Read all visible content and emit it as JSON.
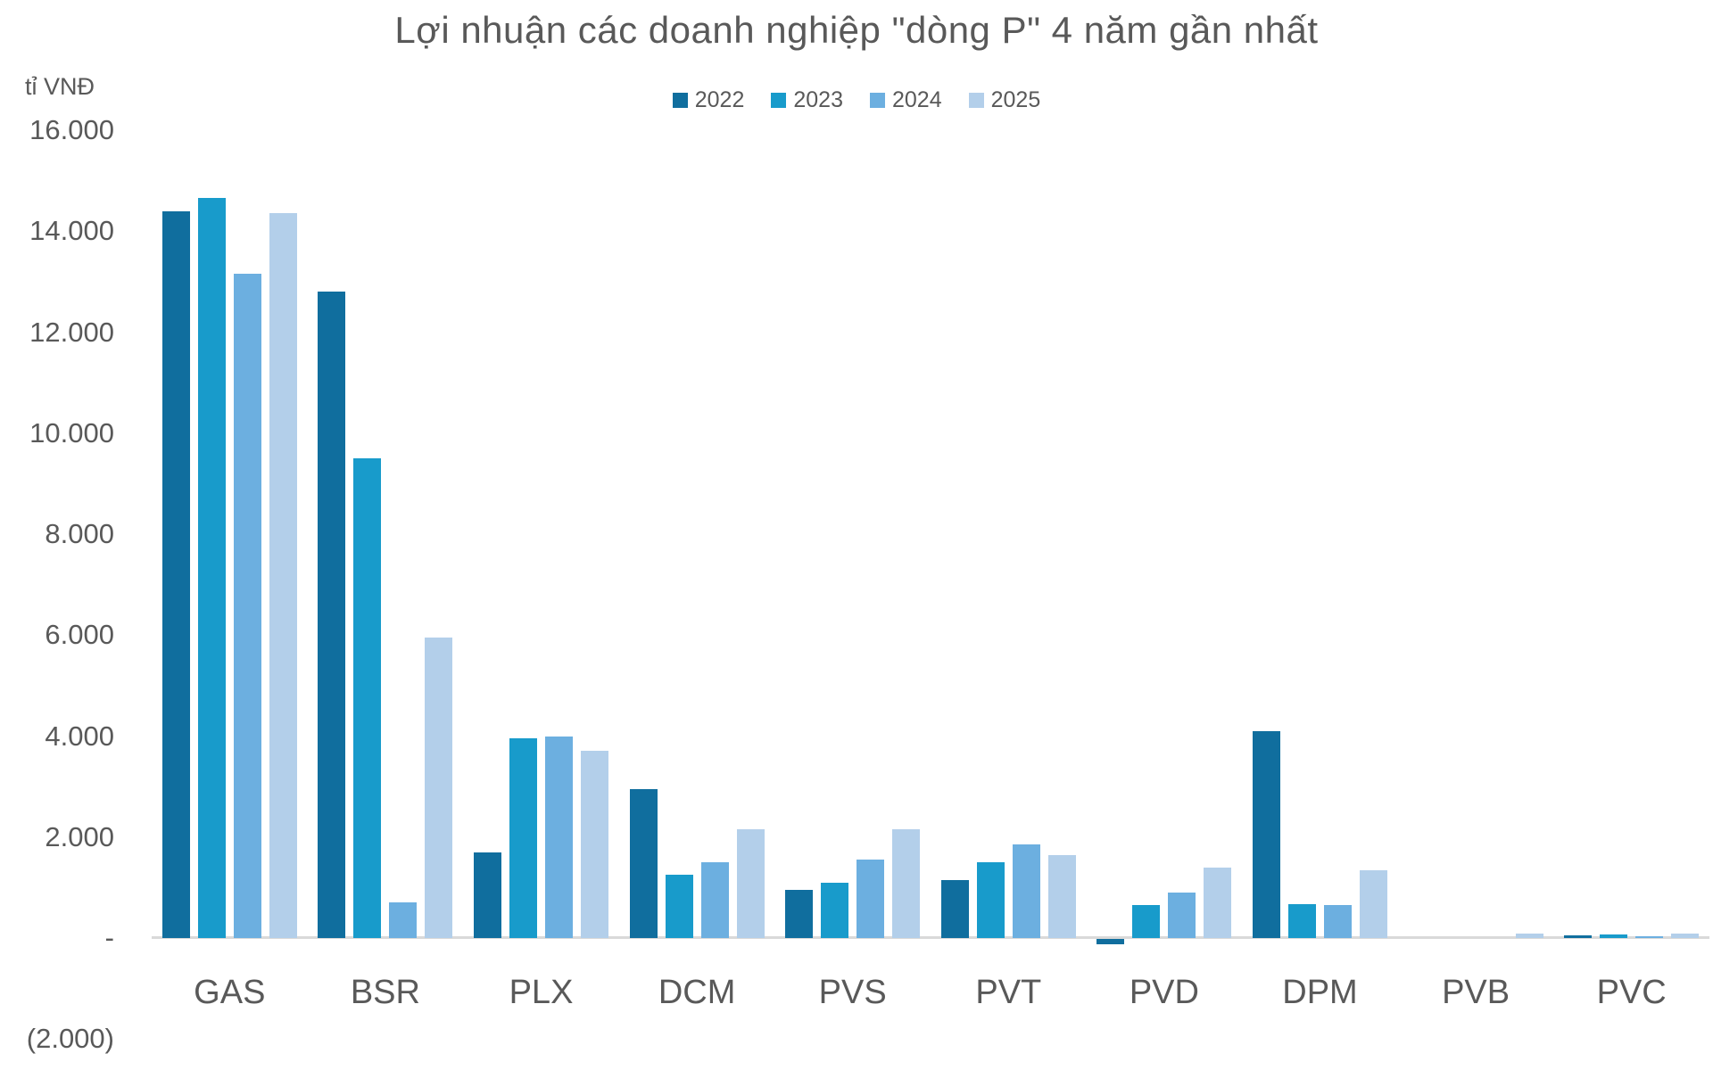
{
  "chart_data": {
    "type": "bar",
    "title": "Lợi nhuận các doanh nghiệp \"dòng P\" 4 năm gần nhất",
    "unit_label": "tỉ VNĐ",
    "categories": [
      "GAS",
      "BSR",
      "PLX",
      "DCM",
      "PVS",
      "PVT",
      "PVD",
      "DPM",
      "PVB",
      "PVC"
    ],
    "series": [
      {
        "name": "2022",
        "color": "#106e9e",
        "values": [
          14400,
          12800,
          1700,
          2950,
          950,
          1150,
          -100,
          4100,
          0,
          45
        ]
      },
      {
        "name": "2023",
        "color": "#189bcb",
        "values": [
          14650,
          9500,
          3950,
          1250,
          1100,
          1500,
          650,
          670,
          0,
          75
        ]
      },
      {
        "name": "2024",
        "color": "#6cafe0",
        "values": [
          13150,
          700,
          4000,
          1500,
          1550,
          1850,
          900,
          650,
          0,
          35
        ]
      },
      {
        "name": "2025",
        "color": "#b3cfea",
        "values": [
          14350,
          5950,
          3700,
          2150,
          2150,
          1650,
          1400,
          1350,
          80,
          80
        ]
      }
    ],
    "ylim": [
      -2000,
      16000
    ],
    "ytick_step": 2000,
    "ytick_labels": [
      "16.000",
      "14.000",
      "12.000",
      "10.000",
      "8.000",
      "6.000",
      "4.000",
      "2.000",
      "-",
      "(2.000)"
    ],
    "legend_position": "top-center",
    "grid": false,
    "colors": {
      "text": "#595959",
      "axis_line": "#d9d9d9",
      "background": "#ffffff"
    }
  }
}
